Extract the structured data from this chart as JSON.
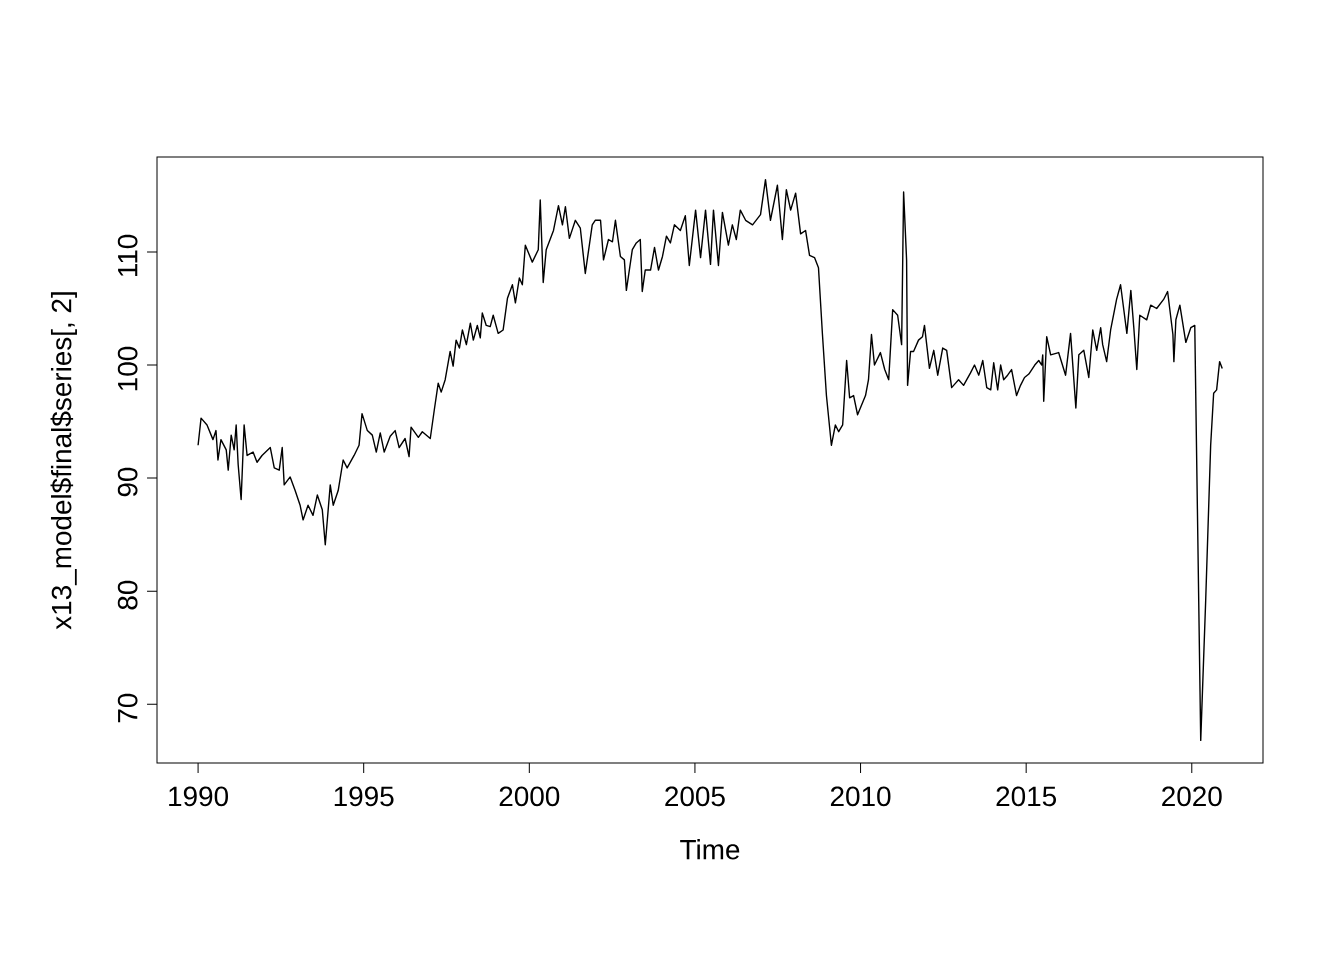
{
  "chart_data": {
    "type": "line",
    "xlabel": "Time",
    "ylabel": "x13_model$final$series[, 2]",
    "xlim": [
      1988.76,
      2022.15
    ],
    "ylim": [
      64.8,
      118.4
    ],
    "xticks": [
      1990,
      1995,
      2000,
      2005,
      2010,
      2015,
      2020
    ],
    "yticks": [
      70,
      80,
      90,
      100,
      110
    ],
    "color": "#000000",
    "grid": false,
    "x": [
      1990.0,
      1990.09,
      1990.27,
      1990.45,
      1990.54,
      1990.6,
      1990.69,
      1990.85,
      1990.91,
      1991.0,
      1991.09,
      1991.15,
      1991.21,
      1991.3,
      1991.39,
      1991.48,
      1991.66,
      1991.78,
      1991.93,
      1992.18,
      1992.3,
      1992.45,
      1992.54,
      1992.6,
      1992.78,
      1992.93,
      1993.08,
      1993.17,
      1993.32,
      1993.47,
      1993.6,
      1993.75,
      1993.84,
      1993.99,
      1994.08,
      1994.23,
      1994.38,
      1994.5,
      1994.71,
      1994.86,
      1994.95,
      1995.11,
      1995.26,
      1995.38,
      1995.5,
      1995.62,
      1995.8,
      1995.95,
      1996.07,
      1996.25,
      1996.37,
      1996.43,
      1996.65,
      1996.77,
      1997.01,
      1997.13,
      1997.25,
      1997.34,
      1997.46,
      1997.61,
      1997.7,
      1997.79,
      1997.89,
      1997.98,
      1998.1,
      1998.22,
      1998.31,
      1998.43,
      1998.52,
      1998.58,
      1998.7,
      1998.82,
      1998.91,
      1999.06,
      1999.21,
      1999.34,
      1999.49,
      1999.58,
      1999.7,
      1999.79,
      1999.88,
      2000.09,
      2000.27,
      2000.33,
      2000.42,
      2000.51,
      2000.73,
      2000.88,
      2001.0,
      2001.09,
      2001.21,
      2001.39,
      2001.54,
      2001.69,
      2001.9,
      2001.99,
      2002.15,
      2002.24,
      2002.39,
      2002.51,
      2002.6,
      2002.75,
      2002.87,
      2002.93,
      2003.11,
      2003.23,
      2003.35,
      2003.41,
      2003.5,
      2003.66,
      2003.78,
      2003.9,
      2004.02,
      2004.14,
      2004.26,
      2004.38,
      2004.56,
      2004.71,
      2004.83,
      2005.02,
      2005.17,
      2005.32,
      2005.47,
      2005.56,
      2005.71,
      2005.83,
      2006.01,
      2006.13,
      2006.25,
      2006.37,
      2006.53,
      2006.74,
      2006.98,
      2007.13,
      2007.28,
      2007.49,
      2007.64,
      2007.76,
      2007.89,
      2008.04,
      2008.19,
      2008.34,
      2008.46,
      2008.61,
      2008.73,
      2008.85,
      2008.97,
      2009.12,
      2009.24,
      2009.34,
      2009.46,
      2009.58,
      2009.67,
      2009.79,
      2009.91,
      2010.15,
      2010.24,
      2010.33,
      2010.42,
      2010.6,
      2010.73,
      2010.85,
      2010.97,
      2011.12,
      2011.24,
      2011.3,
      2011.39,
      2011.42,
      2011.51,
      2011.6,
      2011.75,
      2011.87,
      2011.93,
      2012.08,
      2012.21,
      2012.33,
      2012.48,
      2012.6,
      2012.75,
      2012.87,
      2012.96,
      2013.11,
      2013.32,
      2013.44,
      2013.57,
      2013.69,
      2013.81,
      2013.93,
      2014.02,
      2014.14,
      2014.23,
      2014.32,
      2014.44,
      2014.56,
      2014.71,
      2014.83,
      2014.95,
      2015.08,
      2015.26,
      2015.38,
      2015.47,
      2015.5,
      2015.53,
      2015.62,
      2015.74,
      2015.98,
      2016.19,
      2016.34,
      2016.5,
      2016.59,
      2016.74,
      2016.89,
      2017.01,
      2017.13,
      2017.25,
      2017.31,
      2017.43,
      2017.55,
      2017.73,
      2017.85,
      2018.04,
      2018.16,
      2018.25,
      2018.34,
      2018.43,
      2018.64,
      2018.76,
      2018.94,
      2019.15,
      2019.27,
      2019.43,
      2019.46,
      2019.52,
      2019.64,
      2019.82,
      2019.97,
      2020.09,
      2020.27,
      2020.42,
      2020.57,
      2020.66,
      2020.75,
      2020.84,
      2020.92
    ],
    "values": [
      92.9,
      95.3,
      94.7,
      93.4,
      94.2,
      91.6,
      93.4,
      92.5,
      90.7,
      93.8,
      92.5,
      94.7,
      91.2,
      88.1,
      94.7,
      92.0,
      92.3,
      91.4,
      92.0,
      92.7,
      90.9,
      90.7,
      92.7,
      89.4,
      90.1,
      88.9,
      87.6,
      86.3,
      87.6,
      86.7,
      88.5,
      87.2,
      84.1,
      89.4,
      87.6,
      88.9,
      91.6,
      90.9,
      92.0,
      92.9,
      95.7,
      94.2,
      93.8,
      92.3,
      94.0,
      92.3,
      93.7,
      94.2,
      92.7,
      93.5,
      91.9,
      94.5,
      93.6,
      94.1,
      93.5,
      96.0,
      98.4,
      97.6,
      98.7,
      101.2,
      99.9,
      102.2,
      101.5,
      103.1,
      101.8,
      103.7,
      102.2,
      103.5,
      102.4,
      104.6,
      103.5,
      103.4,
      104.4,
      102.8,
      103.1,
      105.9,
      107.1,
      105.5,
      107.7,
      107.1,
      110.6,
      109.1,
      110.2,
      114.6,
      107.3,
      110.2,
      111.9,
      114.1,
      112.4,
      114.0,
      111.2,
      112.8,
      112.1,
      108.1,
      112.4,
      112.8,
      112.8,
      109.3,
      111.1,
      110.9,
      112.8,
      109.6,
      109.3,
      106.6,
      110.2,
      110.8,
      111.1,
      106.5,
      108.4,
      108.4,
      110.4,
      108.4,
      109.6,
      111.4,
      110.8,
      112.4,
      111.9,
      113.2,
      108.8,
      113.7,
      109.5,
      113.7,
      108.9,
      113.7,
      108.8,
      113.5,
      110.6,
      112.4,
      111.1,
      113.7,
      112.8,
      112.4,
      113.3,
      116.4,
      112.8,
      115.9,
      111.1,
      115.5,
      113.7,
      115.2,
      111.6,
      111.9,
      109.7,
      109.5,
      108.6,
      102.7,
      97.3,
      92.9,
      94.7,
      94.1,
      94.7,
      100.4,
      97.1,
      97.3,
      95.6,
      97.3,
      98.7,
      102.7,
      100.0,
      101.1,
      99.6,
      98.7,
      104.9,
      104.4,
      101.8,
      115.3,
      109.3,
      98.2,
      101.2,
      101.2,
      102.2,
      102.5,
      103.5,
      99.7,
      101.3,
      99.1,
      101.5,
      101.3,
      98.0,
      98.4,
      98.7,
      98.2,
      99.3,
      100.0,
      99.1,
      100.4,
      98.0,
      97.8,
      100.2,
      97.8,
      100.0,
      98.7,
      99.1,
      99.6,
      97.3,
      98.2,
      98.9,
      99.2,
      100.0,
      100.4,
      100.0,
      100.9,
      96.8,
      102.5,
      100.9,
      101.1,
      99.1,
      102.8,
      96.2,
      100.9,
      101.3,
      98.9,
      103.1,
      101.3,
      103.3,
      101.8,
      100.3,
      103.1,
      105.8,
      107.1,
      102.8,
      106.6,
      103.3,
      99.6,
      104.4,
      104.0,
      105.3,
      105.0,
      105.8,
      106.5,
      102.7,
      100.3,
      104.0,
      105.3,
      102.0,
      103.3,
      103.5,
      66.8,
      79.2,
      92.9,
      97.5,
      97.8,
      100.3,
      99.7
    ]
  }
}
